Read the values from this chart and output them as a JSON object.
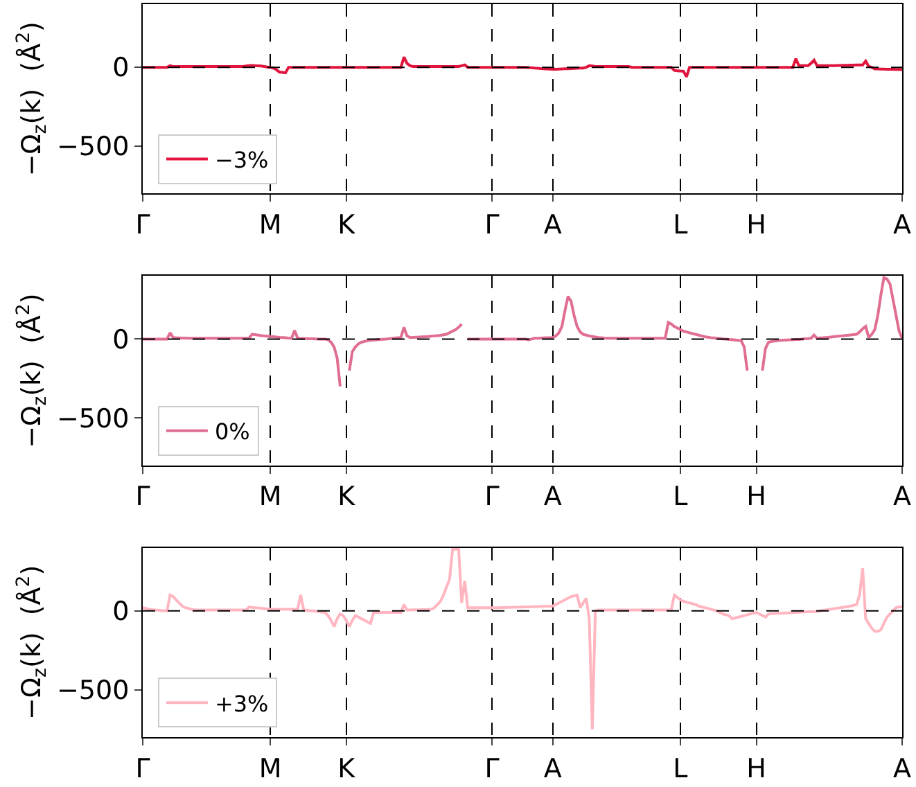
{
  "chart_data": [
    {
      "type": "line",
      "ylabel": "−Ω$_{z}$(k)  (Å$^{2}$)",
      "ylim": [
        -800,
        400
      ],
      "yticks": [
        -500,
        0
      ],
      "grid": "x",
      "legend": "bottom left",
      "line_style": "solid",
      "categories": [
        "Γ",
        null,
        null,
        null,
        null,
        null,
        null,
        null,
        null,
        null,
        null,
        null,
        null,
        null,
        null,
        null,
        null,
        null,
        null,
        null,
        null,
        null,
        null,
        null,
        null,
        null,
        null,
        null,
        null,
        null,
        null,
        null,
        null,
        null,
        null,
        null,
        null,
        null,
        null,
        null,
        null,
        null,
        "M",
        null,
        null,
        null,
        null,
        null,
        null,
        null,
        null,
        null,
        null,
        null,
        null,
        null,
        null,
        null,
        null,
        null,
        null,
        null,
        null,
        null,
        null,
        null,
        null,
        "K",
        null,
        null,
        null,
        null,
        null,
        null,
        null,
        null,
        null,
        null,
        null,
        null,
        null,
        null,
        null,
        null,
        null,
        null,
        null,
        null,
        null,
        null,
        null,
        null,
        null,
        null,
        null,
        null,
        null,
        null,
        null,
        null,
        null,
        null,
        null,
        null,
        null,
        null,
        null,
        null,
        null,
        null,
        null,
        null,
        null,
        null,
        null,
        "Γ",
        null,
        null,
        null,
        null,
        null,
        null,
        null,
        null,
        null,
        null,
        null,
        null,
        null,
        null,
        null,
        null,
        null,
        null,
        null,
        "A",
        null,
        null,
        null,
        null,
        null,
        null,
        null,
        null,
        null,
        null,
        null,
        null,
        null,
        null,
        null,
        null,
        null,
        null,
        null,
        null,
        null,
        null,
        null,
        null,
        null,
        null,
        null,
        null,
        null,
        null,
        null,
        null,
        null,
        null,
        null,
        null,
        null,
        null,
        null,
        null,
        null,
        "L",
        null,
        null,
        null,
        null,
        null,
        null,
        null,
        null,
        null,
        null,
        null,
        null,
        null,
        null,
        null,
        null,
        null,
        null,
        null,
        null,
        null,
        null,
        null,
        null,
        "H",
        null,
        null,
        null,
        null,
        null,
        null,
        null,
        null,
        null,
        null,
        null,
        null,
        null,
        null,
        null,
        null,
        null,
        null,
        null,
        null,
        null,
        null,
        null,
        null,
        null,
        null,
        null,
        null,
        null,
        null,
        null,
        null,
        null,
        null,
        null,
        null,
        null,
        null,
        null,
        null,
        null,
        null,
        null,
        null,
        null,
        null,
        null,
        "A"
      ],
      "ref_lines": [
        {
          "axis": "y",
          "value": 0,
          "label": null,
          "color": "#000000",
          "line_style": "dashed"
        }
      ],
      "series": [
        {
          "name": "−3%",
          "color": "#e0143c",
          "values": [
            0,
            0,
            0,
            0,
            0,
            0,
            0,
            0,
            0,
            10,
            5,
            5,
            5,
            5,
            5,
            5,
            5,
            5,
            5,
            5,
            5,
            5,
            5,
            5,
            5,
            5,
            5,
            5,
            5,
            5,
            5,
            5,
            5,
            5,
            8,
            10,
            12,
            10,
            9,
            8,
            5,
            2,
            0,
            -5,
            -15,
            -30,
            -32,
            -35,
            0,
            0,
            0,
            0,
            0,
            0,
            0,
            0,
            0,
            0,
            0,
            0,
            0,
            0,
            0,
            0,
            0,
            0,
            0,
            0,
            0,
            0,
            0,
            0,
            0,
            0,
            0,
            0,
            0,
            0,
            0,
            0,
            0,
            0,
            0,
            0,
            0,
            0,
            65,
            25,
            10,
            5,
            5,
            5,
            5,
            5,
            5,
            5,
            5,
            5,
            5,
            5,
            5,
            5,
            5,
            5,
            5,
            10,
            15,
            0,
            0,
            0,
            0,
            0,
            0,
            0,
            0,
            0,
            0,
            0,
            0,
            0,
            0,
            0,
            0,
            0,
            0,
            0,
            0,
            -2,
            -3,
            -5,
            -6,
            -8,
            -9,
            -10,
            -11,
            -12,
            -12,
            -11,
            -10,
            -9,
            -9,
            -8,
            -7,
            -6,
            -5,
            -5,
            0,
            10,
            8,
            5,
            5,
            5,
            5,
            5,
            5,
            5,
            5,
            5,
            5,
            5,
            5,
            0,
            0,
            0,
            0,
            0,
            0,
            0,
            0,
            0,
            0,
            0,
            0,
            0,
            0,
            -20,
            -22,
            -24,
            -25,
            -60,
            0,
            0,
            0,
            0,
            0,
            0,
            0,
            0,
            0,
            0,
            0,
            0,
            0,
            0,
            0,
            0,
            0,
            0,
            0,
            0,
            0,
            0,
            0,
            0,
            0,
            0,
            0,
            0,
            0,
            0,
            0,
            0,
            0,
            0,
            0,
            55,
            10,
            10,
            10,
            10,
            25,
            45,
            10,
            10,
            10,
            10,
            10,
            11,
            11,
            12,
            12,
            13,
            13,
            14,
            14,
            15,
            15,
            15,
            40,
            5,
            0,
            -10,
            -10,
            -11,
            -11,
            -12,
            -12,
            -13,
            -14,
            -14,
            -15
          ]
        }
      ]
    },
    {
      "type": "line",
      "ylabel": "−Ω$_{z}$(k)  (Å$^{2}$)",
      "ylim": [
        -800,
        400
      ],
      "yticks": [
        -500,
        0
      ],
      "grid": "x",
      "legend": "bottom left",
      "line_style": "solid",
      "categories": [
        "Γ",
        null,
        null,
        null,
        null,
        null,
        null,
        null,
        null,
        null,
        null,
        null,
        null,
        null,
        null,
        null,
        null,
        null,
        null,
        null,
        null,
        null,
        null,
        null,
        null,
        null,
        null,
        null,
        null,
        null,
        null,
        null,
        null,
        null,
        null,
        null,
        null,
        null,
        null,
        null,
        null,
        null,
        "M",
        null,
        null,
        null,
        null,
        null,
        null,
        null,
        null,
        null,
        null,
        null,
        null,
        null,
        null,
        null,
        null,
        null,
        null,
        null,
        null,
        null,
        null,
        null,
        null,
        "K",
        null,
        null,
        null,
        null,
        null,
        null,
        null,
        null,
        null,
        null,
        null,
        null,
        null,
        null,
        null,
        null,
        null,
        null,
        null,
        null,
        null,
        null,
        null,
        null,
        null,
        null,
        null,
        null,
        null,
        null,
        null,
        null,
        null,
        null,
        null,
        null,
        null,
        null,
        null,
        null,
        null,
        null,
        null,
        null,
        null,
        null,
        null,
        "Γ",
        null,
        null,
        null,
        null,
        null,
        null,
        null,
        null,
        null,
        null,
        null,
        null,
        null,
        null,
        null,
        null,
        null,
        null,
        null,
        "A",
        null,
        null,
        null,
        null,
        null,
        null,
        null,
        null,
        null,
        null,
        null,
        null,
        null,
        null,
        null,
        null,
        null,
        null,
        null,
        null,
        null,
        null,
        null,
        null,
        null,
        null,
        null,
        null,
        null,
        null,
        null,
        null,
        null,
        null,
        null,
        null,
        null,
        null,
        null,
        null,
        null,
        "L",
        null,
        null,
        null,
        null,
        null,
        null,
        null,
        null,
        null,
        null,
        null,
        null,
        null,
        null,
        null,
        null,
        null,
        null,
        null,
        null,
        null,
        null,
        null,
        null,
        "H",
        null,
        null,
        null,
        null,
        null,
        null,
        null,
        null,
        null,
        null,
        null,
        null,
        null,
        null,
        null,
        null,
        null,
        null,
        null,
        null,
        null,
        null,
        null,
        null,
        null,
        null,
        null,
        null,
        null,
        null,
        null,
        null,
        null,
        null,
        null,
        null,
        null,
        null,
        null,
        null,
        null,
        null,
        null,
        null,
        null,
        null,
        null,
        "A"
      ],
      "ref_lines": [
        {
          "axis": "y",
          "value": 0,
          "label": null,
          "color": "#000000",
          "line_style": "dashed"
        }
      ],
      "series": [
        {
          "name": "0%",
          "color": "#e06e90",
          "values": [
            0,
            0,
            0,
            0,
            0,
            0,
            0,
            0,
            0,
            40,
            10,
            8,
            7,
            6,
            6,
            5,
            5,
            5,
            5,
            5,
            5,
            5,
            5,
            5,
            5,
            5,
            5,
            5,
            5,
            5,
            5,
            5,
            5,
            5,
            5,
            5,
            30,
            28,
            25,
            22,
            20,
            18,
            16,
            15,
            13,
            11,
            10,
            8,
            6,
            5,
            55,
            5,
            4,
            3,
            3,
            2,
            2,
            1,
            0,
            0,
            0,
            -5,
            -20,
            -50,
            -120,
            -300,
            null,
            null,
            -200,
            -80,
            -50,
            -30,
            -20,
            -15,
            -10,
            -8,
            -6,
            -5,
            -3,
            -1,
            0,
            2,
            4,
            6,
            8,
            10,
            75,
            20,
            10,
            11,
            12,
            13,
            14,
            15,
            16,
            18,
            20,
            22,
            24,
            27,
            30,
            40,
            50,
            60,
            75,
            95,
            null,
            0,
            0,
            0,
            0,
            0,
            0,
            0,
            0,
            0,
            0,
            0,
            0,
            0,
            0,
            0,
            0,
            0,
            0,
            0,
            0,
            -5,
            0,
            5,
            5,
            6,
            7,
            8,
            9,
            10,
            20,
            40,
            80,
            180,
            270,
            240,
            150,
            80,
            45,
            30,
            25,
            20,
            16,
            13,
            10,
            8,
            6,
            5,
            5,
            5,
            5,
            5,
            5,
            5,
            5,
            5,
            5,
            5,
            5,
            5,
            5,
            5,
            5,
            5,
            5,
            5,
            5,
            105,
            95,
            80,
            70,
            60,
            50,
            45,
            40,
            35,
            30,
            25,
            20,
            15,
            12,
            9,
            7,
            5,
            3,
            1,
            0,
            -2,
            -4,
            -6,
            -8,
            -10,
            -50,
            -200,
            null,
            null,
            null,
            null,
            -200,
            -60,
            -20,
            -15,
            -12,
            -10,
            -8,
            -7,
            -6,
            -5,
            -5,
            -3,
            -2,
            0,
            2,
            3,
            5,
            25,
            5,
            7,
            8,
            10,
            12,
            14,
            16,
            18,
            20,
            22,
            24,
            26,
            28,
            30,
            45,
            65,
            80,
            10,
            30,
            60,
            150,
            280,
            390,
            380,
            350,
            250,
            150,
            50,
            5
          ]
        }
      ]
    },
    {
      "type": "line",
      "ylabel": "−Ω$_{z}$(k)  (Å$^{2}$)",
      "ylim": [
        -800,
        400
      ],
      "yticks": [
        -500,
        0
      ],
      "grid": "x",
      "legend": "bottom left",
      "line_style": "solid",
      "categories": [
        "Γ",
        null,
        null,
        null,
        null,
        null,
        null,
        null,
        null,
        null,
        null,
        null,
        null,
        null,
        null,
        null,
        null,
        null,
        null,
        null,
        null,
        null,
        null,
        null,
        null,
        null,
        null,
        null,
        null,
        null,
        null,
        null,
        null,
        null,
        null,
        null,
        null,
        null,
        null,
        null,
        null,
        null,
        "M",
        null,
        null,
        null,
        null,
        null,
        null,
        null,
        null,
        null,
        null,
        null,
        null,
        null,
        null,
        null,
        null,
        null,
        null,
        null,
        null,
        null,
        null,
        null,
        null,
        "K",
        null,
        null,
        null,
        null,
        null,
        null,
        null,
        null,
        null,
        null,
        null,
        null,
        null,
        null,
        null,
        null,
        null,
        null,
        null,
        null,
        null,
        null,
        null,
        null,
        null,
        null,
        null,
        null,
        null,
        null,
        null,
        null,
        null,
        null,
        null,
        null,
        null,
        null,
        null,
        null,
        null,
        null,
        null,
        null,
        null,
        null,
        null,
        "Γ",
        null,
        null,
        null,
        null,
        null,
        null,
        null,
        null,
        null,
        null,
        null,
        null,
        null,
        null,
        null,
        null,
        null,
        null,
        null,
        "A",
        null,
        null,
        null,
        null,
        null,
        null,
        null,
        null,
        null,
        null,
        null,
        null,
        null,
        null,
        null,
        null,
        null,
        null,
        null,
        null,
        null,
        null,
        null,
        null,
        null,
        null,
        null,
        null,
        null,
        null,
        null,
        null,
        null,
        null,
        null,
        null,
        null,
        null,
        null,
        null,
        null,
        "L",
        null,
        null,
        null,
        null,
        null,
        null,
        null,
        null,
        null,
        null,
        null,
        null,
        null,
        null,
        null,
        null,
        null,
        null,
        null,
        null,
        null,
        null,
        null,
        null,
        "H",
        null,
        null,
        null,
        null,
        null,
        null,
        null,
        null,
        null,
        null,
        null,
        null,
        null,
        null,
        null,
        null,
        null,
        null,
        null,
        null,
        null,
        null,
        null,
        null,
        null,
        null,
        null,
        null,
        null,
        null,
        null,
        null,
        null,
        null,
        null,
        null,
        null,
        null,
        null,
        null,
        null,
        null,
        null,
        null,
        null,
        null,
        null,
        "A"
      ],
      "ref_lines": [
        {
          "axis": "y",
          "value": 0,
          "label": null,
          "color": "#000000",
          "line_style": "dashed"
        }
      ],
      "series": [
        {
          "name": "+3%",
          "color": "#ffb6c1",
          "values": [
            20,
            15,
            10,
            8,
            6,
            4,
            2,
            1,
            0,
            100,
            90,
            70,
            50,
            30,
            20,
            15,
            10,
            7,
            5,
            5,
            5,
            5,
            5,
            5,
            5,
            5,
            5,
            5,
            5,
            5,
            5,
            5,
            5,
            5,
            5,
            25,
            22,
            20,
            18,
            16,
            14,
            12,
            11,
            10,
            10,
            10,
            10,
            10,
            10,
            10,
            10,
            10,
            100,
            5,
            3,
            1,
            0,
            -2,
            -5,
            -8,
            -10,
            -30,
            -60,
            -100,
            -50,
            -20,
            -30,
            -60,
            -100,
            -60,
            -30,
            -40,
            -50,
            -60,
            -70,
            -80,
            -10,
            -10,
            -10,
            -10,
            -10,
            -10,
            -10,
            -10,
            -10,
            -10,
            40,
            5,
            5,
            6,
            6,
            7,
            8,
            8,
            9,
            10,
            20,
            40,
            60,
            100,
            150,
            200,
            390,
            390,
            390,
            50,
            190,
            20,
            20,
            20,
            20,
            20,
            20,
            20,
            20,
            20,
            20,
            20,
            21,
            21,
            22,
            22,
            23,
            23,
            24,
            24,
            25,
            25,
            26,
            26,
            27,
            27,
            28,
            29,
            29,
            30,
            40,
            50,
            60,
            70,
            80,
            90,
            95,
            100,
            20,
            50,
            80,
            -50,
            -750,
            0,
            5,
            5,
            5,
            5,
            5,
            5,
            5,
            5,
            5,
            5,
            5,
            5,
            5,
            5,
            5,
            5,
            5,
            5,
            5,
            5,
            5,
            5,
            5,
            5,
            5,
            100,
            85,
            70,
            60,
            55,
            50,
            45,
            40,
            30,
            25,
            20,
            15,
            10,
            5,
            0,
            -10,
            -20,
            -25,
            -30,
            -50,
            -45,
            -40,
            -35,
            -30,
            -25,
            -20,
            -15,
            -10,
            -20,
            -30,
            -40,
            -20,
            -18,
            -17,
            -16,
            -15,
            -14,
            -13,
            -12,
            -11,
            -10,
            -9,
            -8,
            -7,
            -6,
            -6,
            -5,
            -5,
            0,
            3,
            6,
            9,
            12,
            15,
            18,
            21,
            24,
            27,
            30,
            35,
            40,
            100,
            270,
            -50,
            -80,
            -110,
            -130,
            -130,
            -120,
            -80,
            -40,
            -20,
            0,
            20,
            25,
            25
          ]
        }
      ]
    }
  ]
}
